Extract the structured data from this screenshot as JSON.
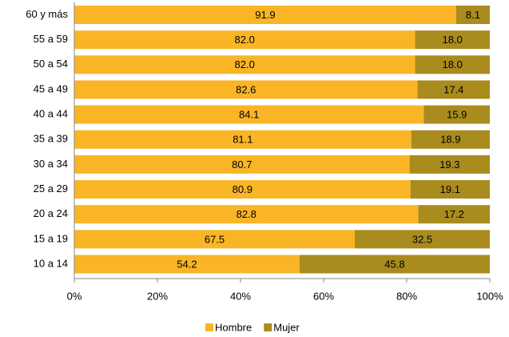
{
  "chart_data": {
    "type": "stacked-barh",
    "categories": [
      "60 y más",
      "55 a 59",
      "50 a 54",
      "45 a 49",
      "40 a 44",
      "35 a 39",
      "30 a 34",
      "25 a 29",
      "20 a 24",
      "15 a 19",
      "10 a 14"
    ],
    "series": [
      {
        "name": "Hombre",
        "color": "#f9b526",
        "values": [
          91.9,
          82.0,
          82.0,
          82.6,
          84.1,
          81.1,
          80.7,
          80.9,
          82.8,
          67.5,
          54.2
        ],
        "value_labels": [
          "91.9",
          "82.0",
          "82.0",
          "82.6",
          "84.1",
          "81.1",
          "80.7",
          "80.9",
          "82.8",
          "67.5",
          "54.2"
        ]
      },
      {
        "name": "Mujer",
        "color": "#a98b1e",
        "values": [
          8.1,
          18.0,
          18.0,
          17.4,
          15.9,
          18.9,
          19.3,
          19.1,
          17.2,
          32.5,
          45.8
        ],
        "value_labels": [
          "8.1",
          "18.0",
          "18.0",
          "17.4",
          "15.9",
          "18.9",
          "19.3",
          "19.1",
          "17.2",
          "32.5",
          "45.8"
        ]
      }
    ],
    "xlim": [
      0,
      100
    ],
    "xticks": [
      {
        "value": 0,
        "label": "0%"
      },
      {
        "value": 20,
        "label": "20%"
      },
      {
        "value": 40,
        "label": "40%"
      },
      {
        "value": 60,
        "label": "60%"
      },
      {
        "value": 80,
        "label": "80%"
      },
      {
        "value": 100,
        "label": "100%"
      }
    ],
    "legend": "bottom"
  }
}
